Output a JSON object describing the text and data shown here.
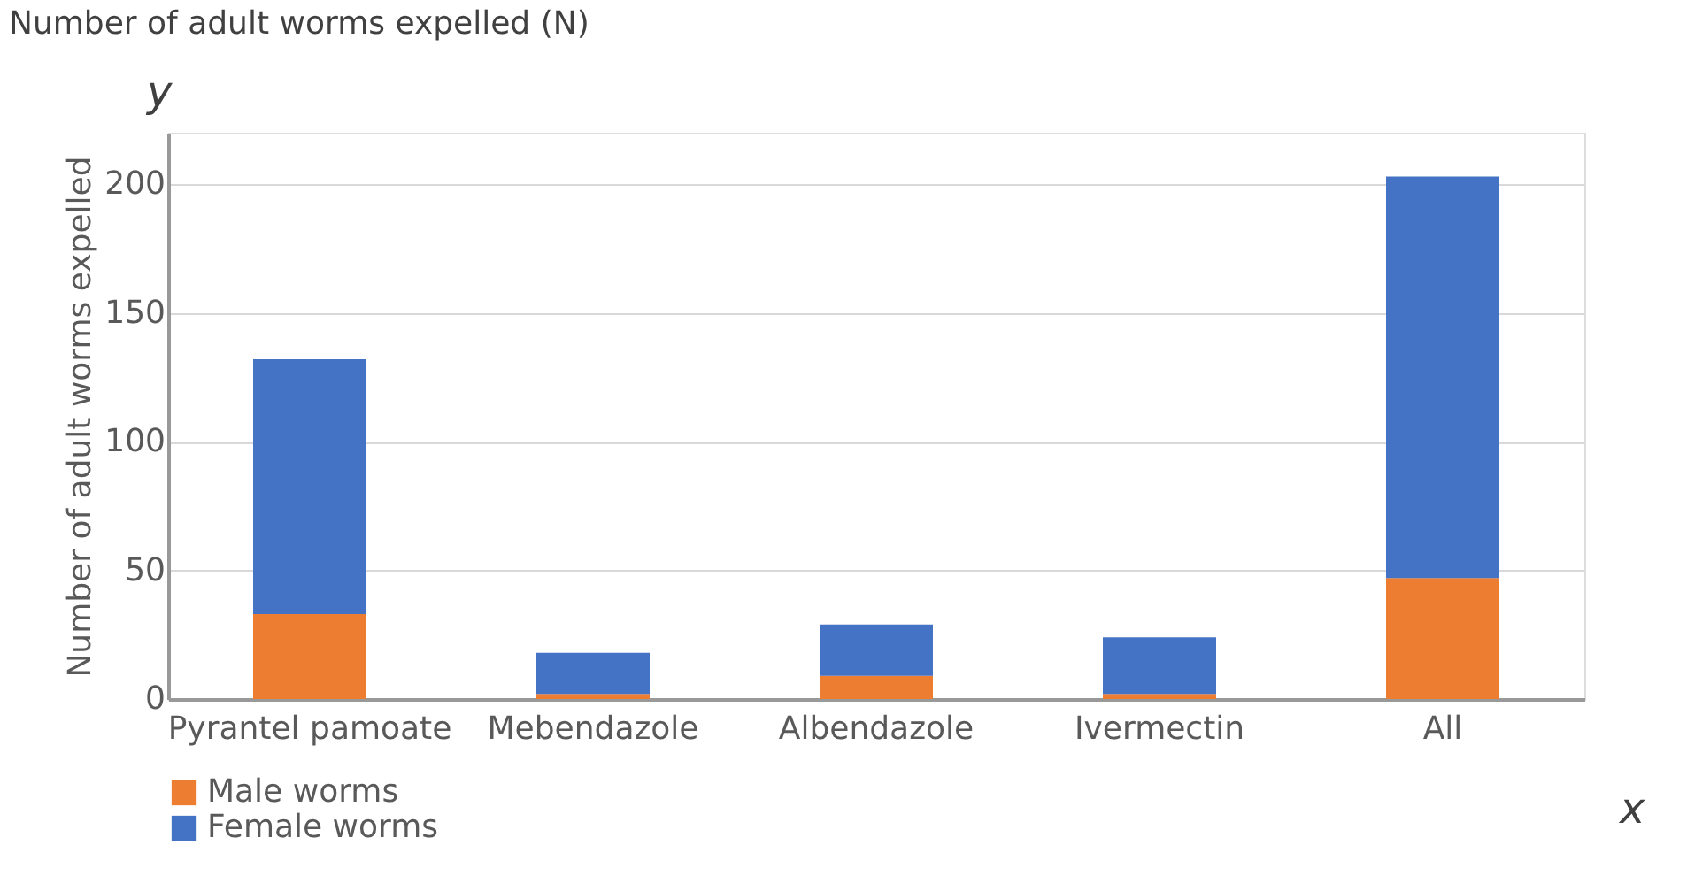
{
  "chart_data": {
    "type": "bar",
    "stacked": true,
    "title": "Number of adult worms expelled (N)",
    "ylabel": "Number of adult worms expelled",
    "categories": [
      "Pyrantel pamoate",
      "Mebendazole",
      "Albendazole",
      "Ivermectin",
      "All"
    ],
    "series": [
      {
        "name": "Male worms",
        "color": "#ed7d31",
        "values": [
          33,
          2,
          9,
          2,
          47
        ]
      },
      {
        "name": "Female worms",
        "color": "#4472c4",
        "values": [
          99,
          16,
          20,
          22,
          156
        ]
      }
    ],
    "ylim": [
      0,
      220
    ],
    "yticks": [
      0,
      50,
      100,
      150,
      200
    ],
    "grid": "y",
    "legend": "bottom",
    "annotations": [
      "y",
      "x"
    ]
  }
}
